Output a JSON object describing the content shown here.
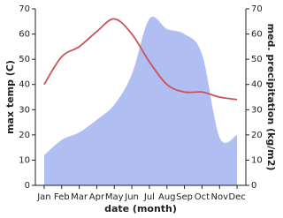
{
  "chart_data": {
    "type": "line-area",
    "x_label": "date (month)",
    "y_label": "max temp (C)",
    "y2_label": "med. precipitation (kg/m2)",
    "categories": [
      "Jan",
      "Feb",
      "Mar",
      "Apr",
      "May",
      "Jun",
      "Jul",
      "Aug",
      "Sep",
      "Oct",
      "Nov",
      "Dec"
    ],
    "series": [
      {
        "name": "max temp",
        "type": "line",
        "color": "#c8545a",
        "values": [
          40,
          51,
          55,
          61,
          66,
          60,
          49,
          40,
          37,
          37,
          35,
          34
        ]
      },
      {
        "name": "precipitation",
        "type": "area",
        "axis": "y2",
        "color": "#b0bef2",
        "values": [
          12,
          18,
          21,
          26,
          32,
          44,
          66,
          62,
          60,
          52,
          19,
          20
        ]
      }
    ],
    "ylim": [
      0,
      70
    ],
    "yticks": [
      0,
      10,
      20,
      30,
      40,
      50,
      60,
      70
    ],
    "y2lim": [
      0,
      70
    ],
    "y2ticks": [
      0,
      10,
      20,
      30,
      40,
      50,
      60,
      70
    ]
  }
}
